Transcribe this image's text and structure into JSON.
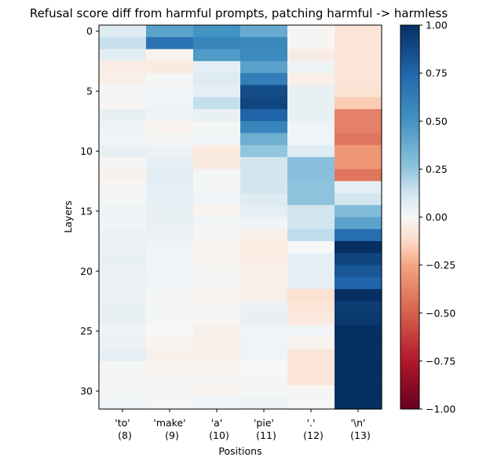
{
  "chart_data": {
    "type": "heatmap",
    "title": "Refusal score diff from harmful prompts, patching harmful -> harmless",
    "xlabel": "Positions",
    "ylabel": "Layers",
    "x_categories": [
      {
        "token": "'to'",
        "position": "(8)"
      },
      {
        "token": "'make'",
        "position": "(9)"
      },
      {
        "token": "'a'",
        "position": "(10)"
      },
      {
        "token": "'pie'",
        "position": "(11)"
      },
      {
        "token": "'.'",
        "position": "(12)"
      },
      {
        "token": "'\\n'",
        "position": "(13)"
      }
    ],
    "y_values": [
      0,
      1,
      2,
      3,
      4,
      5,
      6,
      7,
      8,
      9,
      10,
      11,
      12,
      13,
      14,
      15,
      16,
      17,
      18,
      19,
      20,
      21,
      22,
      23,
      24,
      25,
      26,
      27,
      28,
      29,
      30,
      31
    ],
    "y_ticks": [
      "0",
      "5",
      "10",
      "15",
      "20",
      "25",
      "30"
    ],
    "colorbar": {
      "colormap": "RdBu",
      "min": -1.0,
      "max": 1.0,
      "ticks": [
        "1.00",
        "0.75",
        "0.50",
        "0.25",
        "0.00",
        "−0.25",
        "−0.50",
        "−0.75",
        "−1.00"
      ]
    },
    "values": [
      [
        0.08,
        0.42,
        0.5,
        0.38,
        -0.01,
        -0.08
      ],
      [
        0.14,
        0.68,
        0.58,
        0.56,
        -0.01,
        -0.08
      ],
      [
        0.07,
        -0.02,
        0.46,
        0.55,
        -0.05,
        -0.08
      ],
      [
        -0.05,
        -0.06,
        0.06,
        0.43,
        0.03,
        -0.08
      ],
      [
        -0.04,
        0.01,
        0.08,
        0.62,
        -0.04,
        -0.08
      ],
      [
        0.01,
        0.02,
        0.06,
        0.87,
        0.05,
        -0.09
      ],
      [
        -0.01,
        0.02,
        0.15,
        0.9,
        0.05,
        -0.16
      ],
      [
        0.05,
        0.03,
        0.05,
        0.76,
        0.05,
        -0.38
      ],
      [
        0.03,
        -0.02,
        0.01,
        0.58,
        0.02,
        -0.38
      ],
      [
        0.02,
        0.01,
        0.02,
        0.36,
        0.02,
        -0.42
      ],
      [
        0.05,
        0.04,
        -0.06,
        0.25,
        0.08,
        -0.3
      ],
      [
        -0.01,
        0.06,
        -0.06,
        0.12,
        0.28,
        -0.3
      ],
      [
        -0.03,
        0.07,
        0.01,
        0.12,
        0.28,
        -0.42
      ],
      [
        -0.01,
        0.06,
        0.01,
        0.12,
        0.26,
        0.06
      ],
      [
        0.01,
        0.06,
        0.02,
        0.08,
        0.26,
        0.12
      ],
      [
        0.03,
        0.05,
        -0.02,
        0.06,
        0.12,
        0.3
      ],
      [
        0.02,
        0.05,
        0.02,
        0.02,
        0.12,
        0.42
      ],
      [
        0.04,
        0.04,
        -0.01,
        -0.04,
        0.16,
        0.7
      ],
      [
        0.04,
        0.02,
        -0.02,
        -0.06,
        0.0,
        1.0
      ],
      [
        0.05,
        0.02,
        -0.02,
        -0.05,
        0.06,
        0.9
      ],
      [
        0.04,
        0.02,
        -0.01,
        -0.03,
        0.06,
        0.82
      ],
      [
        0.04,
        0.02,
        -0.01,
        -0.04,
        0.06,
        0.76
      ],
      [
        0.04,
        0.01,
        -0.02,
        -0.04,
        -0.1,
        1.0
      ],
      [
        0.05,
        0.01,
        -0.01,
        0.04,
        -0.08,
        0.94
      ],
      [
        0.05,
        0.01,
        -0.01,
        0.05,
        -0.06,
        0.96
      ],
      [
        0.03,
        0.0,
        -0.03,
        0.02,
        0.02,
        1.0
      ],
      [
        0.04,
        -0.02,
        -0.04,
        0.02,
        -0.02,
        1.0
      ],
      [
        0.06,
        -0.03,
        -0.04,
        0.02,
        -0.08,
        1.0
      ],
      [
        0.01,
        -0.02,
        -0.02,
        0.0,
        -0.08,
        1.0
      ],
      [
        0.01,
        -0.01,
        -0.01,
        0.01,
        -0.08,
        1.0
      ],
      [
        0.01,
        -0.01,
        -0.02,
        0.01,
        -0.01,
        1.0
      ],
      [
        0.02,
        0.01,
        0.02,
        0.04,
        0.01,
        1.0
      ]
    ]
  }
}
